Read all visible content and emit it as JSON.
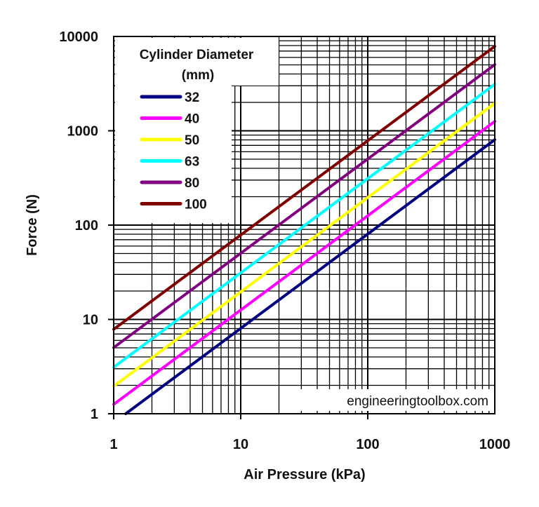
{
  "chart_data": {
    "type": "line",
    "title": "",
    "xlabel": "Air Pressure (kPa)",
    "ylabel": "Force (N)",
    "xscale": "log",
    "yscale": "log",
    "xlim": [
      1,
      1000
    ],
    "ylim": [
      1,
      10000
    ],
    "grid": true,
    "x_ticks": [
      "1",
      "10",
      "100",
      "1000"
    ],
    "y_ticks": [
      "1",
      "10",
      "100",
      "1000",
      "10000"
    ],
    "legend": {
      "title_line1": "Cylinder Diameter",
      "title_line2": "(mm)",
      "placement": "top-left"
    },
    "watermark": "engineeringtoolbox.com",
    "series": [
      {
        "name": "32",
        "color": "#000080",
        "x": [
          1,
          1000
        ],
        "y": [
          0.804,
          804
        ]
      },
      {
        "name": "40",
        "color": "#ff00ff",
        "x": [
          1,
          1000
        ],
        "y": [
          1.257,
          1257
        ]
      },
      {
        "name": "50",
        "color": "#ffff00",
        "x": [
          1,
          1000
        ],
        "y": [
          1.963,
          1963
        ]
      },
      {
        "name": "63",
        "color": "#00ffff",
        "x": [
          1,
          1000
        ],
        "y": [
          3.117,
          3117
        ]
      },
      {
        "name": "80",
        "color": "#800080",
        "x": [
          1,
          1000
        ],
        "y": [
          5.027,
          5027
        ]
      },
      {
        "name": "100",
        "color": "#800000",
        "x": [
          1,
          1000
        ],
        "y": [
          7.854,
          7854
        ]
      }
    ]
  }
}
